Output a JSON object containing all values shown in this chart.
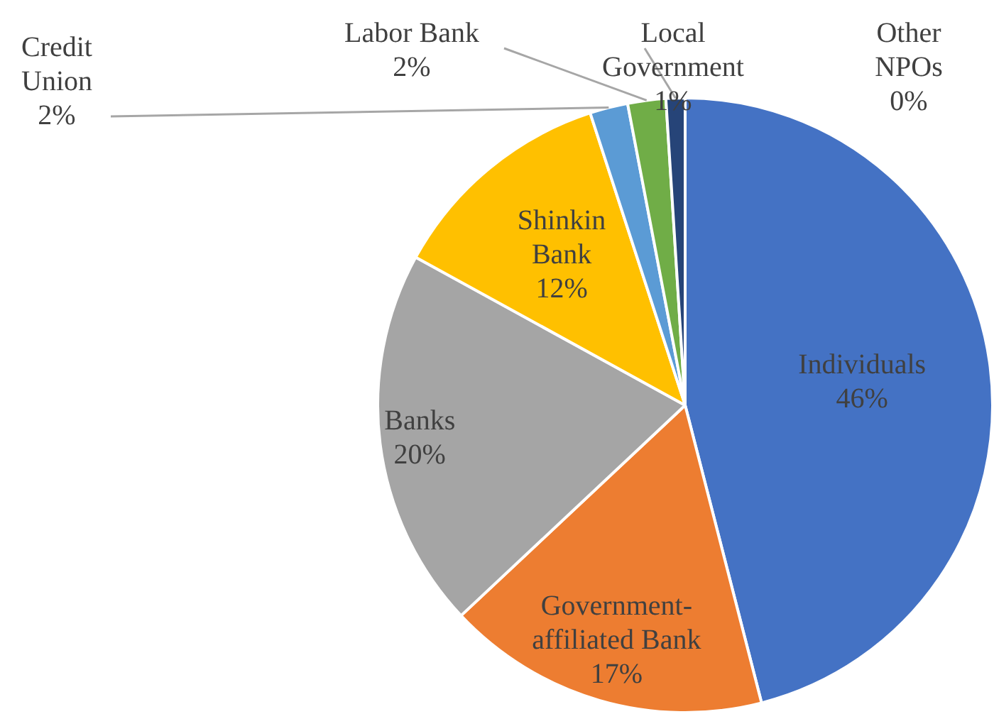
{
  "chart_data": {
    "type": "pie",
    "categories": [
      "Individuals",
      "Government-affiliated Bank",
      "Banks",
      "Shinkin Bank",
      "Credit Union",
      "Labor Bank",
      "Local Government",
      "Other NPOs"
    ],
    "values": [
      46,
      17,
      20,
      12,
      2,
      2,
      1,
      0
    ],
    "value_labels": [
      "46%",
      "17%",
      "20%",
      "12%",
      "2%",
      "2%",
      "1%",
      "0%"
    ],
    "colors": [
      "#4472c4",
      "#ed7d31",
      "#a5a5a5",
      "#ffc000",
      "#5b9bd5",
      "#70ad47",
      "#264478",
      "#9e480e"
    ],
    "legend": false
  }
}
